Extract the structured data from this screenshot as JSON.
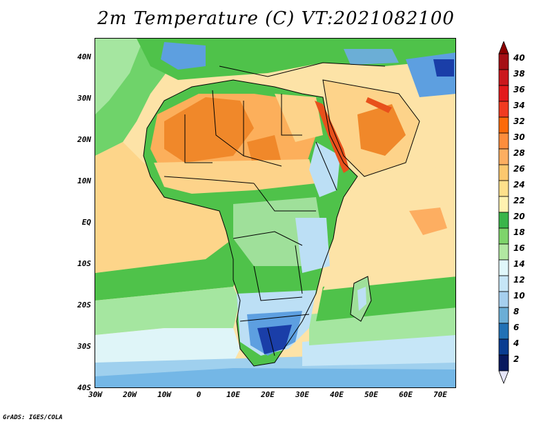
{
  "title": "2m Temperature (C) VT:2021082100",
  "footer": "GrADS: IGES/COLA",
  "lat_ticks": [
    "40N",
    "30N",
    "20N",
    "10N",
    "EQ",
    "10S",
    "20S",
    "30S",
    "40S"
  ],
  "lon_ticks": [
    "30W",
    "20W",
    "10W",
    "0",
    "10E",
    "20E",
    "30E",
    "40E",
    "50E",
    "60E",
    "70E"
  ],
  "colorbar": {
    "levels": [
      "40",
      "38",
      "36",
      "34",
      "32",
      "30",
      "28",
      "26",
      "24",
      "22",
      "20",
      "18",
      "16",
      "14",
      "12",
      "10",
      "8",
      "6",
      "4",
      "2"
    ],
    "colors": [
      "#a50f15",
      "#cb181d",
      "#e31a1c",
      "#f03b20",
      "#fc6a0a",
      "#fd8d3c",
      "#fdae61",
      "#fdc86e",
      "#fee08b",
      "#fff2b0",
      "#3ab54a",
      "#7ed46b",
      "#b2e8a2",
      "#e0f7fa",
      "#c6e6f7",
      "#a6cfee",
      "#6baed6",
      "#2171b5",
      "#0a3d91",
      "#08195e"
    ],
    "top_arrow_color": "#8b0000",
    "bottom_arrow_color": "#e6e6fa"
  },
  "map_colors": {
    "ocean_warm": "#fde3a7",
    "ocean_mid": "#fdd58a",
    "ocean_green": "#6fd36a",
    "ocean_lightgreen": "#a5e6a0",
    "ocean_cool": "#dff5f8",
    "ocean_cold": "#9fd0ee",
    "ocean_colder": "#74b7e6",
    "land_hot": "#f0882a",
    "land_warm": "#fcaf5b",
    "land_tan": "#fdd38a",
    "land_green": "#4fc24a",
    "land_lightgreen": "#9fe09a",
    "land_cool": "#bcdff5",
    "land_blue": "#5d9fe0",
    "land_deep": "#1a3ea8"
  }
}
